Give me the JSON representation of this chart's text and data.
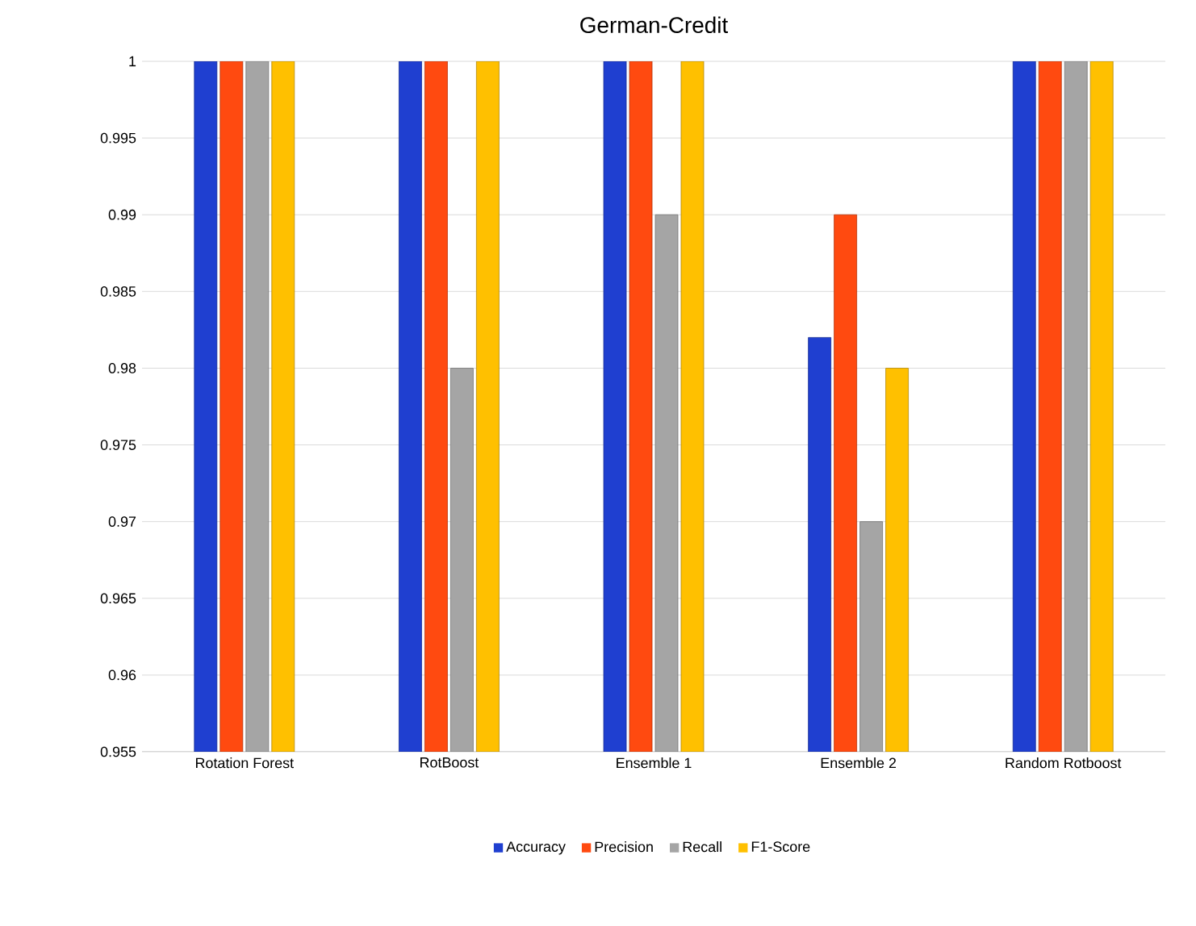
{
  "chart_data": {
    "type": "bar",
    "title": "German-Credit",
    "categories": [
      "Rotation Forest",
      "RotBoost",
      "Ensemble 1",
      "Ensemble 2",
      "Random Rotboost"
    ],
    "series": [
      {
        "name": "Accuracy",
        "color": "#1f3fd0",
        "values": [
          1,
          1,
          1,
          0.982,
          1
        ]
      },
      {
        "name": "Precision",
        "color": "#ff4a10",
        "values": [
          1,
          1,
          1,
          0.99,
          1
        ]
      },
      {
        "name": "Recall",
        "color": "#a5a5a5",
        "values": [
          1,
          0.98,
          0.99,
          0.97,
          1
        ]
      },
      {
        "name": "F1-Score",
        "color": "#ffc000",
        "values": [
          1,
          1,
          1,
          0.98,
          1
        ]
      }
    ],
    "ylim": [
      0.955,
      1
    ],
    "yticks": [
      0.955,
      0.96,
      0.965,
      0.97,
      0.975,
      0.98,
      0.985,
      0.99,
      0.995,
      1
    ],
    "grid": "y",
    "legend": "bottom"
  }
}
